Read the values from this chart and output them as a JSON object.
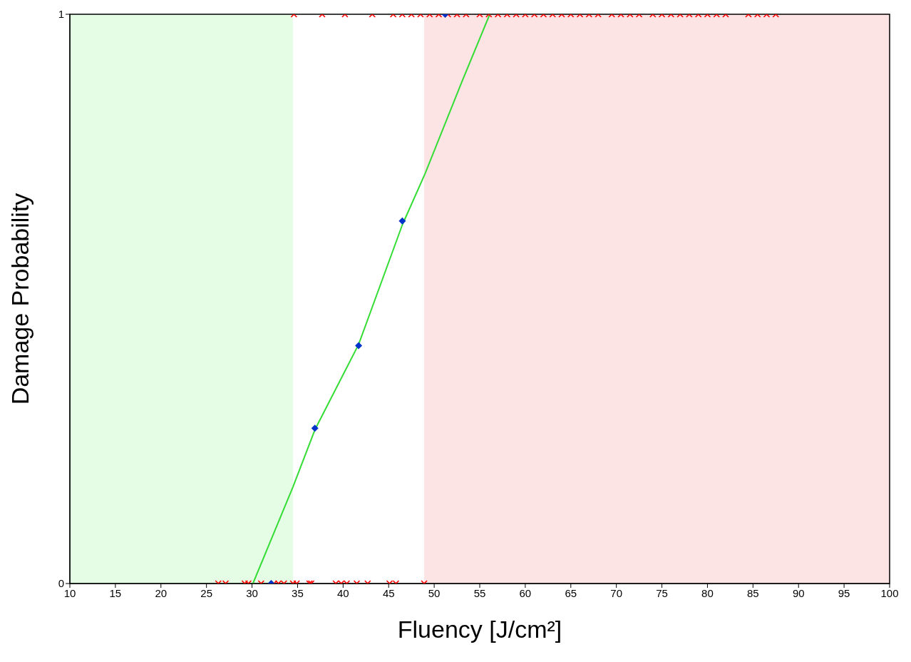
{
  "chart_data": {
    "type": "scatter",
    "xlabel": "Fluency [J/cm²]",
    "ylabel": "Damage Probability",
    "xlim": [
      10,
      100
    ],
    "xticks": [
      10,
      15,
      20,
      25,
      30,
      35,
      40,
      45,
      50,
      55,
      60,
      65,
      70,
      75,
      80,
      85,
      90,
      95,
      100
    ],
    "ylim": [
      0,
      1
    ],
    "yticks": [
      0,
      1
    ],
    "grid": false,
    "legend": false,
    "bands": [
      {
        "axis": "x",
        "from": 10,
        "to": 34.5,
        "color": "#e5fde5"
      },
      {
        "axis": "x",
        "from": 48.9,
        "to": 100,
        "color": "#fde4e4"
      }
    ],
    "series": [
      {
        "marker": "cross",
        "color": "#ff0000",
        "x": [
          26.3,
          27.1,
          29.2,
          29.6,
          31.0,
          32.4,
          32.9,
          33.5,
          34.5,
          34.9,
          36.3,
          36.5,
          39.2,
          39.8,
          40.4,
          41.5,
          42.7,
          45.1,
          45.8,
          48.9
        ],
        "values": [
          0,
          0,
          0,
          0,
          0,
          0,
          0,
          0,
          0,
          0,
          0,
          0,
          0,
          0,
          0,
          0,
          0,
          0,
          0,
          0
        ]
      },
      {
        "marker": "cross",
        "color": "#ff0000",
        "x": [
          34.6,
          37.7,
          40.2,
          43.2,
          45.5,
          46.5,
          47.5,
          48.5,
          49.5,
          50.5,
          51.5,
          52.5,
          53.5,
          55,
          56,
          57,
          58,
          59,
          60,
          61,
          62,
          63,
          64,
          65,
          66,
          67,
          68,
          69.5,
          70.5,
          71.5,
          72.5,
          74,
          75,
          76,
          77,
          78,
          79,
          80,
          81,
          82,
          84.5,
          85.5,
          86.5,
          87.5
        ],
        "values": [
          1,
          1,
          1,
          1,
          1,
          1,
          1,
          1,
          1,
          1,
          1,
          1,
          1,
          1,
          1,
          1,
          1,
          1,
          1,
          1,
          1,
          1,
          1,
          1,
          1,
          1,
          1,
          1,
          1,
          1,
          1,
          1,
          1,
          1,
          1,
          1,
          1,
          1,
          1,
          1,
          1,
          1,
          1,
          1
        ]
      },
      {
        "type": "line",
        "marker": "none",
        "color": "#33dd33",
        "x": [
          30.1,
          34.5,
          36.9,
          41.7,
          46.5,
          49.0,
          53.0,
          56.1
        ],
        "values": [
          0,
          0.17,
          0.27,
          0.42,
          0.63,
          0.72,
          0.88,
          1
        ]
      },
      {
        "marker": "diamond",
        "color": "#0033cc",
        "x": [
          32.1,
          36.9,
          41.7,
          46.5,
          51.2
        ],
        "values": [
          0,
          0.273,
          0.418,
          0.637,
          1
        ]
      }
    ]
  }
}
